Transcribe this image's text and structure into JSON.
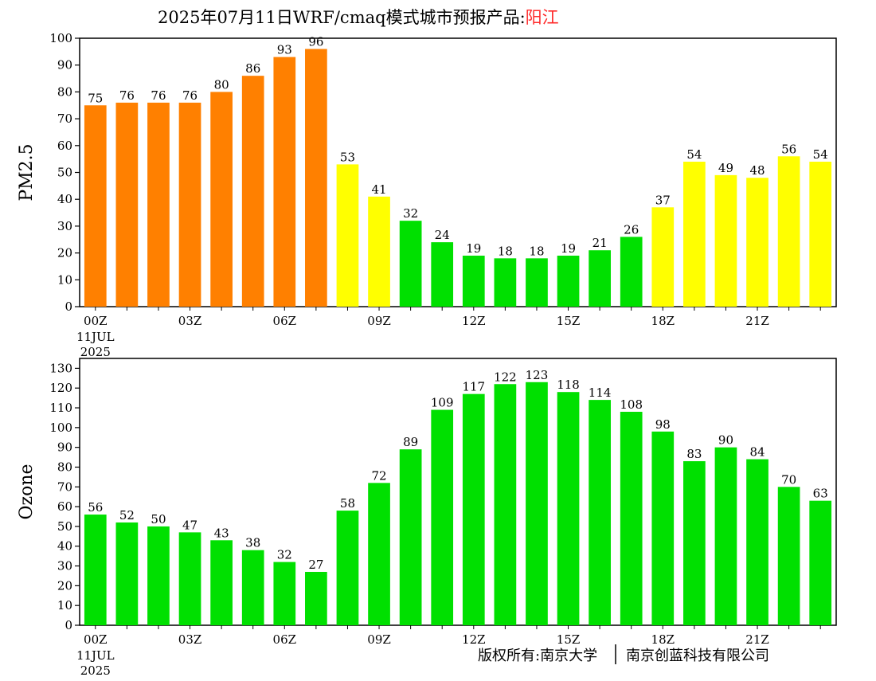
{
  "title": {
    "prefix": "2025年07月11日WRF/cmaq模式城市预报产品:",
    "city": "阳江",
    "city_color": "#ff2a2a"
  },
  "footer": {
    "left": "版权所有:南京大学",
    "right": "南京创蓝科技有限公司"
  },
  "colors": {
    "orange": "#ff8000",
    "yellow": "#ffff00",
    "green": "#00e000"
  },
  "chart_data": [
    {
      "type": "bar",
      "ylabel": "PM2.5",
      "ylim": [
        0,
        100
      ],
      "yticks": [
        0,
        10,
        20,
        30,
        40,
        50,
        60,
        70,
        80,
        90,
        100
      ],
      "x_tick_labels": [
        "00Z",
        "03Z",
        "06Z",
        "09Z",
        "12Z",
        "15Z",
        "18Z",
        "21Z"
      ],
      "x_tick_positions": [
        0,
        3,
        6,
        9,
        12,
        15,
        18,
        21
      ],
      "date_label": [
        "11JUL",
        "2025"
      ],
      "values": [
        75,
        76,
        76,
        76,
        80,
        86,
        93,
        96,
        53,
        41,
        32,
        24,
        19,
        18,
        18,
        19,
        21,
        26,
        37,
        54,
        49,
        48,
        56,
        54
      ],
      "bar_colors": [
        "orange",
        "orange",
        "orange",
        "orange",
        "orange",
        "orange",
        "orange",
        "orange",
        "yellow",
        "yellow",
        "green",
        "green",
        "green",
        "green",
        "green",
        "green",
        "green",
        "green",
        "yellow",
        "yellow",
        "yellow",
        "yellow",
        "yellow",
        "yellow"
      ]
    },
    {
      "type": "bar",
      "ylabel": "Ozone",
      "ylim": [
        0,
        135
      ],
      "yticks": [
        0,
        10,
        20,
        30,
        40,
        50,
        60,
        70,
        80,
        90,
        100,
        110,
        120,
        130
      ],
      "x_tick_labels": [
        "00Z",
        "03Z",
        "06Z",
        "09Z",
        "12Z",
        "15Z",
        "18Z",
        "21Z"
      ],
      "x_tick_positions": [
        0,
        3,
        6,
        9,
        12,
        15,
        18,
        21
      ],
      "date_label": [
        "11JUL",
        "2025"
      ],
      "values": [
        56,
        52,
        50,
        47,
        43,
        38,
        32,
        27,
        58,
        72,
        89,
        109,
        117,
        122,
        123,
        118,
        114,
        108,
        98,
        83,
        90,
        84,
        70,
        63
      ],
      "bar_colors": [
        "green",
        "green",
        "green",
        "green",
        "green",
        "green",
        "green",
        "green",
        "green",
        "green",
        "green",
        "green",
        "green",
        "green",
        "green",
        "green",
        "green",
        "green",
        "green",
        "green",
        "green",
        "green",
        "green",
        "green"
      ]
    }
  ]
}
